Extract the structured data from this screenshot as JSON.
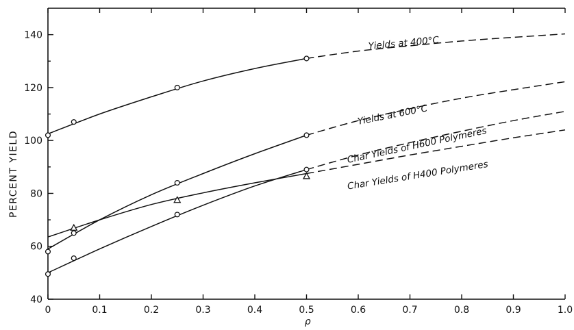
{
  "chart_data": {
    "type": "line",
    "title": "",
    "xlabel": "ρ",
    "ylabel": "PERCENT YIELD",
    "xlim": [
      0,
      1.0
    ],
    "ylim": [
      40,
      150
    ],
    "xticks": [
      0,
      0.1,
      0.2,
      0.3,
      0.4,
      0.5,
      0.6,
      0.7,
      0.8,
      0.9,
      1.0
    ],
    "xtick_labels": [
      "0",
      "0.1",
      "0.2",
      "0.3",
      "0.4",
      "0.5",
      "0.6",
      "0.7",
      "0.8",
      "0.9",
      "1.0"
    ],
    "yticks": [
      40,
      60,
      80,
      100,
      120,
      140
    ],
    "ytick_labels": [
      "40",
      "60",
      "80",
      "100",
      "120",
      "140"
    ],
    "grid": false,
    "series": [
      {
        "name": "Yields at 400°C",
        "marker": "circle",
        "points": [
          [
            0,
            102
          ],
          [
            0.05,
            107
          ],
          [
            0.25,
            120
          ],
          [
            0.5,
            131
          ]
        ],
        "curve_solid": [
          [
            0,
            102.5
          ],
          [
            0.1,
            110
          ],
          [
            0.2,
            116.5
          ],
          [
            0.3,
            122.5
          ],
          [
            0.4,
            127.2
          ],
          [
            0.5,
            131
          ]
        ],
        "curve_dashed": [
          [
            0.5,
            131
          ],
          [
            0.6,
            133.8
          ],
          [
            0.7,
            135.8
          ],
          [
            0.8,
            137.6
          ],
          [
            0.9,
            139
          ],
          [
            1.0,
            140.3
          ]
        ],
        "label_at": [
          0.62,
          134.5
        ]
      },
      {
        "name": "Yields at 600°C",
        "marker": "circle",
        "points": [
          [
            0,
            58
          ],
          [
            0.05,
            65
          ],
          [
            0.25,
            84
          ],
          [
            0.5,
            102
          ]
        ],
        "curve_solid": [
          [
            0,
            59
          ],
          [
            0.1,
            70
          ],
          [
            0.2,
            79.5
          ],
          [
            0.3,
            87.5
          ],
          [
            0.4,
            95
          ],
          [
            0.5,
            102
          ]
        ],
        "curve_dashed": [
          [
            0.5,
            102
          ],
          [
            0.6,
            107.5
          ],
          [
            0.7,
            112
          ],
          [
            0.8,
            116
          ],
          [
            0.9,
            119.2
          ],
          [
            1.0,
            122.2
          ]
        ],
        "label_at": [
          0.6,
          106
        ]
      },
      {
        "name": "Char Yields of H600 Polymeres",
        "marker": "circle",
        "points": [
          [
            0,
            49.5
          ],
          [
            0.05,
            55.5
          ],
          [
            0.25,
            72
          ],
          [
            0.5,
            89
          ]
        ],
        "curve_solid": [
          [
            0,
            50
          ],
          [
            0.1,
            59
          ],
          [
            0.2,
            67.5
          ],
          [
            0.3,
            75.5
          ],
          [
            0.4,
            82.8
          ],
          [
            0.5,
            89
          ]
        ],
        "curve_dashed": [
          [
            0.5,
            89
          ],
          [
            0.6,
            94.5
          ],
          [
            0.7,
            99.2
          ],
          [
            0.8,
            103.5
          ],
          [
            0.9,
            107.5
          ],
          [
            1.0,
            111
          ]
        ],
        "label_at": [
          0.58,
          91.5
        ]
      },
      {
        "name": "Char Yields of H400 Polymeres",
        "marker": "triangle",
        "points": [
          [
            0.05,
            67
          ],
          [
            0.25,
            77.5
          ],
          [
            0.5,
            86.5
          ]
        ],
        "curve_solid": [
          [
            0,
            63.5
          ],
          [
            0.1,
            70
          ],
          [
            0.2,
            75.8
          ],
          [
            0.3,
            80.2
          ],
          [
            0.4,
            84
          ],
          [
            0.5,
            87.5
          ]
        ],
        "curve_dashed": [
          [
            0.5,
            87.5
          ],
          [
            0.6,
            91
          ],
          [
            0.7,
            94.5
          ],
          [
            0.8,
            97.8
          ],
          [
            0.9,
            101
          ],
          [
            1.0,
            104
          ]
        ],
        "label_at": [
          0.58,
          81.5
        ]
      }
    ]
  }
}
